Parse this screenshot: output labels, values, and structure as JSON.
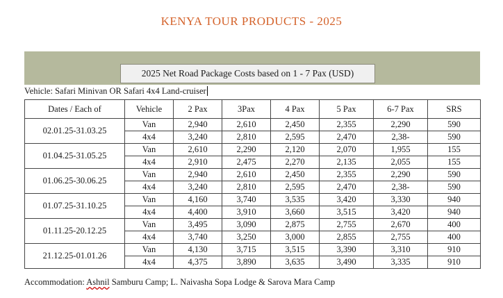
{
  "title": "KENYA TOUR PRODUCTS - 2025",
  "subtitle": "2025 Net Road Package Costs based on 1 - 7 Pax (USD)",
  "vehicle_line": "Vehicle:  Safari Minivan OR Safari 4x4 Land-cruiser",
  "table": {
    "headers": [
      "Dates / Each of",
      "Vehicle",
      "2 Pax",
      "3Pax",
      "4 Pax",
      "5 Pax",
      "6-7 Pax",
      "SRS"
    ],
    "groups": [
      {
        "dates": "02.01.25-31.03.25",
        "rows": [
          [
            "Van",
            "2,940",
            "2,610",
            "2,450",
            "2,355",
            "2,290",
            "590"
          ],
          [
            "4x4",
            "3,240",
            "2,810",
            "2,595",
            "2,470",
            "2,38-",
            "590"
          ]
        ]
      },
      {
        "dates": "01.04.25-31.05.25",
        "rows": [
          [
            "Van",
            "2,610",
            "2,290",
            "2,120",
            "2,070",
            "1,955",
            "155"
          ],
          [
            "4x4",
            "2,910",
            "2,475",
            "2,270",
            "2,135",
            "2,055",
            "155"
          ]
        ]
      },
      {
        "dates": "01.06.25-30.06.25",
        "rows": [
          [
            "Van",
            "2,940",
            "2,610",
            "2,450",
            "2,355",
            "2,290",
            "590"
          ],
          [
            "4x4",
            "3,240",
            "2,810",
            "2,595",
            "2,470",
            "2,38-",
            "590"
          ]
        ]
      },
      {
        "dates": "01.07.25-31.10.25",
        "rows": [
          [
            "Van",
            "4,160",
            "3,740",
            "3,535",
            "3,420",
            "3,330",
            "940"
          ],
          [
            "4x4",
            "4,400",
            "3,910",
            "3,660",
            "3,515",
            "3,420",
            "940"
          ]
        ]
      },
      {
        "dates": "01.11.25-20.12.25",
        "rows": [
          [
            "Van",
            "3,495",
            "3,090",
            "2,875",
            "2,755",
            "2,670",
            "400"
          ],
          [
            "4x4",
            "3,740",
            "3,250",
            "3,000",
            "2,855",
            "2,755",
            "400"
          ]
        ]
      },
      {
        "dates": "21.12.25-01.01.26",
        "rows": [
          [
            "Van",
            "4,130",
            "3,715",
            "3,515",
            "3,390",
            "3,310",
            "910"
          ],
          [
            "4x4",
            "4,375",
            "3,890",
            "3,635",
            "3,490",
            "3,335",
            "910"
          ]
        ]
      }
    ]
  },
  "footer": {
    "prefix": "Accommodation: ",
    "squiggle_word": "Ashnil",
    "rest": " Samburu Camp; L. Naivasha Sopa Lodge & Sarova Mara Camp"
  }
}
